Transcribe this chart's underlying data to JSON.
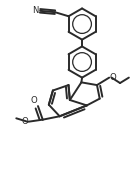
{
  "bg_color": "#ffffff",
  "line_color": "#2a2a2a",
  "lw": 1.4,
  "fig_width": 1.37,
  "fig_height": 1.81,
  "dpi": 100,
  "xlim": [
    0.0,
    1.0
  ],
  "ylim": [
    0.0,
    1.32
  ]
}
